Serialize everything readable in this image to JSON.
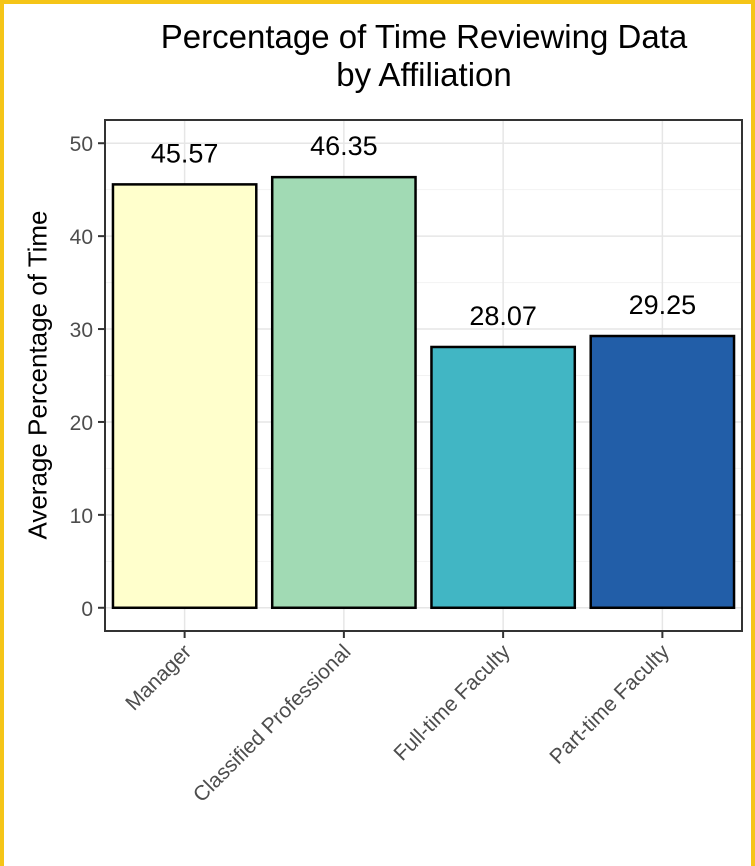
{
  "chart_data": {
    "type": "bar",
    "title_line1": "Percentage of Time Reviewing Data",
    "title_line2": "by Affiliation",
    "xlabel": "",
    "ylabel": "Average Percentage of Time",
    "categories": [
      "Manager",
      "Classified Professional",
      "Full-time Faculty",
      "Part-time Faculty"
    ],
    "values": [
      45.57,
      46.35,
      28.07,
      29.25
    ],
    "value_labels": [
      "45.57",
      "46.35",
      "28.07",
      "29.25"
    ],
    "colors": [
      "#ffffcc",
      "#a1dab4",
      "#41b6c4",
      "#225ea8"
    ],
    "ylim": [
      -2.5,
      52.5
    ],
    "yticks": [
      0,
      10,
      20,
      30,
      40,
      50
    ],
    "ytick_labels": [
      "0",
      "10",
      "20",
      "30",
      "40",
      "50"
    ],
    "grid": true,
    "legend": "none"
  }
}
